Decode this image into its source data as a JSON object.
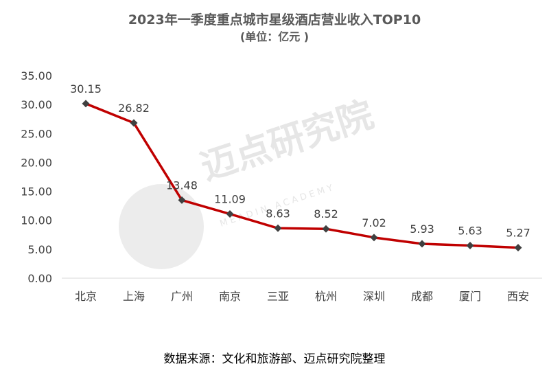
{
  "chart_data": {
    "type": "line",
    "title": "2023年一季度重点城市星级酒店营业收入TOP10",
    "subtitle": "(单位：亿元 )",
    "categories": [
      "北京",
      "上海",
      "广州",
      "南京",
      "三亚",
      "杭州",
      "深圳",
      "成都",
      "厦门",
      "西安"
    ],
    "series": [
      {
        "values": [
          30.15,
          26.82,
          13.48,
          11.09,
          8.63,
          8.52,
          7.02,
          5.93,
          5.63,
          5.27
        ]
      }
    ],
    "y_ticks": [
      "0.00",
      "5.00",
      "10.00",
      "15.00",
      "20.00",
      "25.00",
      "30.00",
      "35.00"
    ],
    "ylim": [
      0,
      35
    ],
    "grid": false,
    "line_color": "#c00000",
    "marker_color": "#404040",
    "source": "数据来源：文化和旅游部、迈点研究院整理"
  },
  "watermark": {
    "text": "迈点研究院",
    "subtext": "MEADIN ACADEMY"
  }
}
